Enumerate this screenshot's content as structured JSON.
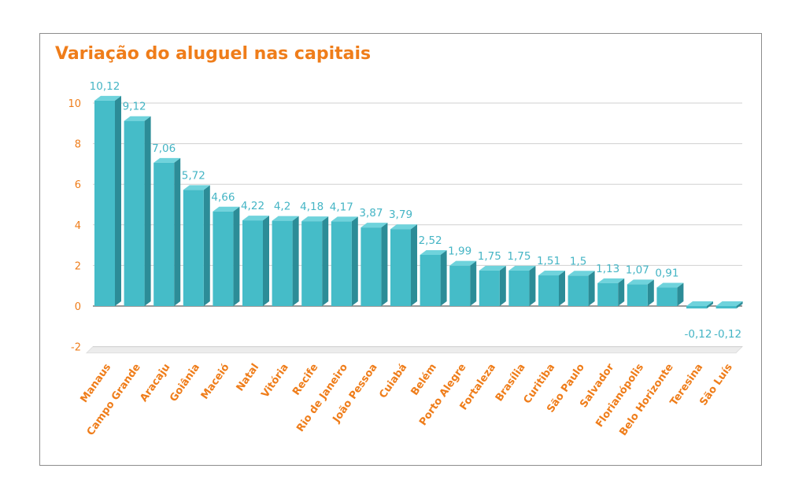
{
  "chart_data": {
    "type": "bar",
    "title": "Variação do aluguel nas capitais",
    "xlabel": "",
    "ylabel": "",
    "ylim": [
      -2,
      10
    ],
    "yticks": [
      -2,
      0,
      2,
      4,
      6,
      8,
      10
    ],
    "grid": true,
    "legend": "none",
    "categories": [
      "Manaus",
      "Campo Grande",
      "Aracaju",
      "Goiânia",
      "Maceió",
      "Natal",
      "Vitória",
      "Recife",
      "Rio de Janeiro",
      "João Pessoa",
      "Cuiabá",
      "Belém",
      "Porto Alegre",
      "Fortaleza",
      "Brasília",
      "Curitiba",
      "São Paulo",
      "Salvador",
      "Florianópolis",
      "Belo Horizonte",
      "Teresina",
      "São Luís"
    ],
    "values": [
      10.12,
      9.12,
      7.06,
      5.72,
      4.66,
      4.22,
      4.2,
      4.18,
      4.17,
      3.87,
      3.79,
      2.52,
      1.99,
      1.75,
      1.75,
      1.51,
      1.5,
      1.13,
      1.07,
      0.91,
      -0.12,
      -0.12
    ],
    "value_labels": [
      "10,12",
      "9,12",
      "7,06",
      "5,72",
      "4,66",
      "4,22",
      "4,2",
      "4,18",
      "4,17",
      "3,87",
      "3,79",
      "2,52",
      "1,99",
      "1,75",
      "1,75",
      "1,51",
      "1,5",
      "1,13",
      "1,07",
      "0,91",
      "-0,12",
      "-0,12"
    ],
    "colors": {
      "bar_front": "#45bcc8",
      "bar_top": "#6fd3dc",
      "bar_side": "#2c8c97",
      "title": "#ef7d1a",
      "axis_text": "#ef7d1a",
      "value_text": "#45b5c5",
      "grid": "#d0d0d0"
    }
  }
}
